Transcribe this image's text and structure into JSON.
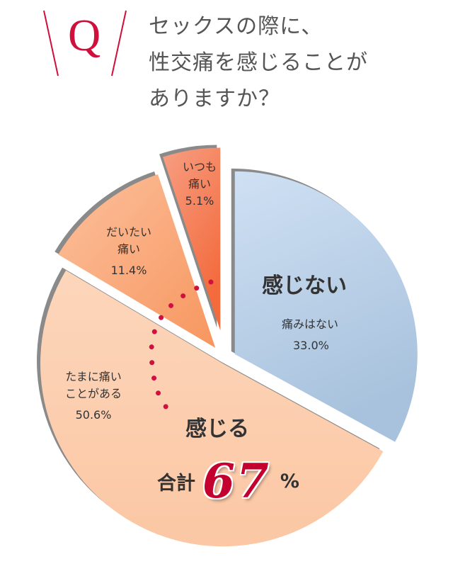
{
  "header": {
    "q_letter": "Q",
    "question_lines": [
      "セックスの際に、",
      "性交痛を感じることが",
      "ありますか？"
    ]
  },
  "chart_data": {
    "type": "pie",
    "title": "セックスの際に、性交痛を感じることがありますか？",
    "slices": [
      {
        "label": "痛みはない",
        "value": 33.0,
        "display": "33.0%",
        "group": "感じない",
        "color": "#c4d8ee"
      },
      {
        "label": "たまに痛いことがある",
        "value": 50.6,
        "display": "50.6%",
        "group": "感じる",
        "color": "#fccdae"
      },
      {
        "label": "だいたい痛い",
        "value": 11.4,
        "display": "11.4%",
        "group": "感じる",
        "color": "#fbae86"
      },
      {
        "label": "いつも痛い",
        "value": 5.1,
        "display": "5.1%",
        "group": "感じる",
        "color": "#f58462"
      }
    ],
    "groups": {
      "no": "感じない",
      "yes": "感じる"
    },
    "total": {
      "prefix": "合計",
      "value": "67",
      "suffix": "%"
    }
  },
  "labels": {
    "s0_line1": "痛みはない",
    "s1_line1": "たまに痛い",
    "s1_line2": "ことがある",
    "s2_line1": "だいたい",
    "s2_line2": "痛い",
    "s3_line1": "いつも",
    "s3_line2": "痛い"
  }
}
